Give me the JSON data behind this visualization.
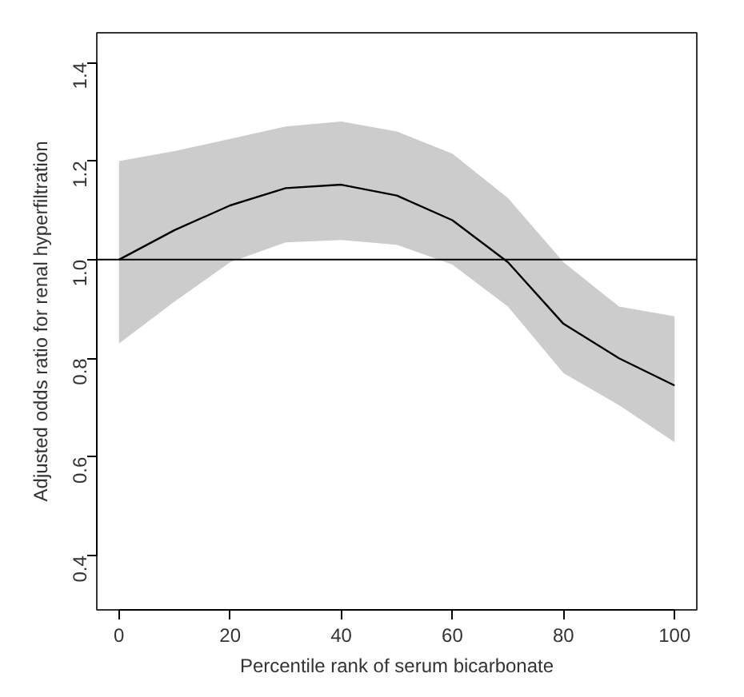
{
  "chart_data": {
    "type": "line",
    "xlabel": "Percentile rank of serum bicarbonate",
    "ylabel": "Adjusted odds ratio for renal hyperfiltration",
    "x": [
      0,
      10,
      20,
      30,
      40,
      50,
      60,
      70,
      80,
      90,
      100
    ],
    "series": [
      {
        "color": "#000000",
        "values": [
          1.0,
          1.06,
          1.11,
          1.145,
          1.152,
          1.13,
          1.08,
          0.995,
          0.87,
          0.8,
          0.745
        ],
        "lower": [
          0.83,
          0.915,
          0.995,
          1.035,
          1.04,
          1.03,
          0.99,
          0.905,
          0.77,
          0.705,
          0.63
        ],
        "upper": [
          1.2,
          1.22,
          1.245,
          1.27,
          1.28,
          1.26,
          1.215,
          1.125,
          0.995,
          0.905,
          0.885
        ]
      }
    ],
    "xlim": [
      -4,
      104
    ],
    "ylim": [
      0.29,
      1.46
    ],
    "xticks": [
      0,
      20,
      40,
      60,
      80,
      100
    ],
    "yticks": [
      0.4,
      0.6,
      0.8,
      {
        "value": 1.0,
        "label": "1.0"
      },
      1.2,
      1.4
    ],
    "ref_lines": [
      {
        "axis": "y",
        "value": 1.0,
        "color": "#000000"
      }
    ],
    "grid": false
  }
}
